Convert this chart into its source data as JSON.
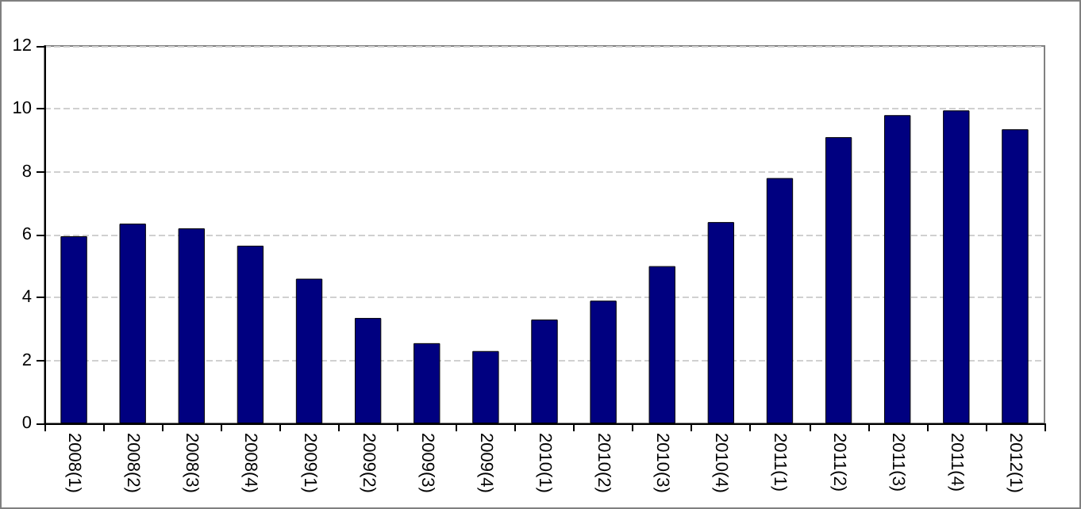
{
  "chart_data": {
    "type": "bar",
    "categories": [
      "2008(1)",
      "2008(2)",
      "2008(3)",
      "2008(4)",
      "2009(1)",
      "2009(2)",
      "2009(3)",
      "2009(4)",
      "2010(1)",
      "2010(2)",
      "2010(3)",
      "2010(4)",
      "2011(1)",
      "2011(2)",
      "2011(3)",
      "2011(4)",
      "2012(1)"
    ],
    "values": [
      5.95,
      6.35,
      6.2,
      5.65,
      4.6,
      3.35,
      2.55,
      2.3,
      3.3,
      3.9,
      5.0,
      6.4,
      7.8,
      9.1,
      9.8,
      9.95,
      9.35
    ],
    "color": "#000080",
    "ylim": [
      0,
      12
    ],
    "yticks": [
      0,
      2,
      4,
      6,
      8,
      10,
      12
    ],
    "grid": "y"
  }
}
